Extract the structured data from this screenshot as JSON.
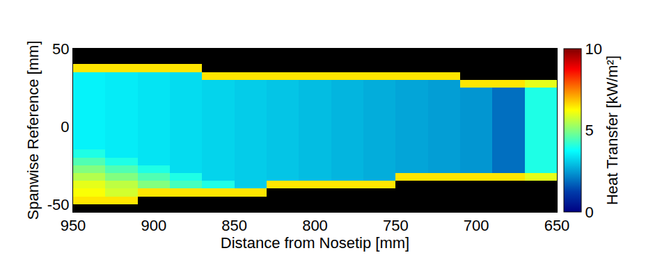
{
  "chart_data": {
    "type": "heatmap",
    "x_label": "Distance from Nosetip [mm]",
    "y_label": "Spanwise Reference [mm]",
    "x": [
      940,
      920,
      900,
      880,
      860,
      840,
      820,
      800,
      780,
      760,
      740,
      720,
      700,
      680,
      660
    ],
    "y": [
      -52.5,
      -47.5,
      -42.5,
      -37.5,
      -32.5,
      -27.5,
      -22.5,
      -17.5,
      -12.5,
      -7.5,
      -2.5,
      2.5,
      7.5,
      12.5,
      17.5,
      22.5,
      27.5,
      32.5,
      37.5,
      42.5,
      47.5
    ],
    "z": [
      [
        null,
        null,
        null,
        null,
        null,
        null,
        null,
        null,
        null,
        null,
        null,
        null,
        null,
        null,
        null
      ],
      [
        6.5,
        6.5,
        null,
        null,
        null,
        null,
        null,
        null,
        null,
        null,
        null,
        null,
        null,
        null,
        null
      ],
      [
        6.2,
        5.8,
        6.5,
        6.5,
        6.5,
        6.5,
        null,
        null,
        null,
        null,
        null,
        null,
        null,
        null,
        null
      ],
      [
        6.0,
        5.6,
        5.0,
        4.4,
        4.0,
        3.1,
        6.5,
        6.5,
        6.5,
        6.5,
        null,
        null,
        null,
        null,
        null
      ],
      [
        5.5,
        5.0,
        4.5,
        4.0,
        3.2,
        3.1,
        3.0,
        2.9,
        2.8,
        2.7,
        6.5,
        6.5,
        6.5,
        6.5,
        6.0
      ],
      [
        5.0,
        4.5,
        4.0,
        3.3,
        3.2,
        3.1,
        3.0,
        2.9,
        2.8,
        2.7,
        2.6,
        2.5,
        2.4,
        1.9,
        4.0
      ],
      [
        4.5,
        4.0,
        3.4,
        3.3,
        3.2,
        3.1,
        3.0,
        2.9,
        2.8,
        2.7,
        2.6,
        2.5,
        2.4,
        1.9,
        4.0
      ],
      [
        4.0,
        3.5,
        3.4,
        3.3,
        3.2,
        3.1,
        3.0,
        2.9,
        2.8,
        2.7,
        2.6,
        2.5,
        2.4,
        1.9,
        4.0
      ],
      [
        3.6,
        3.5,
        3.4,
        3.3,
        3.2,
        3.1,
        3.0,
        2.9,
        2.8,
        2.7,
        2.6,
        2.5,
        2.4,
        1.9,
        4.0
      ],
      [
        3.6,
        3.5,
        3.4,
        3.3,
        3.2,
        3.1,
        3.0,
        2.9,
        2.8,
        2.7,
        2.6,
        2.5,
        2.4,
        1.9,
        4.0
      ],
      [
        3.6,
        3.5,
        3.4,
        3.3,
        3.2,
        3.1,
        3.0,
        2.9,
        2.8,
        2.7,
        2.6,
        2.5,
        2.4,
        1.9,
        4.0
      ],
      [
        3.6,
        3.5,
        3.4,
        3.3,
        3.2,
        3.1,
        3.0,
        2.9,
        2.8,
        2.7,
        2.6,
        2.5,
        2.4,
        1.9,
        4.0
      ],
      [
        3.6,
        3.5,
        3.4,
        3.3,
        3.2,
        3.1,
        3.0,
        2.9,
        2.8,
        2.7,
        2.6,
        2.5,
        2.4,
        1.9,
        4.0
      ],
      [
        3.6,
        3.5,
        3.4,
        3.3,
        3.2,
        3.1,
        3.0,
        2.9,
        2.8,
        2.7,
        2.6,
        2.5,
        2.4,
        1.9,
        4.0
      ],
      [
        3.6,
        3.5,
        3.4,
        3.3,
        3.2,
        3.1,
        3.0,
        2.9,
        2.8,
        2.7,
        2.6,
        2.5,
        2.4,
        1.9,
        4.0
      ],
      [
        3.6,
        3.5,
        3.4,
        3.3,
        3.2,
        3.1,
        3.0,
        2.9,
        2.8,
        2.7,
        2.6,
        2.5,
        2.4,
        1.9,
        4.0
      ],
      [
        3.6,
        3.5,
        3.4,
        3.3,
        3.2,
        3.1,
        3.0,
        2.9,
        2.8,
        2.7,
        2.6,
        2.5,
        6.5,
        6.5,
        6.0
      ],
      [
        3.6,
        3.5,
        3.4,
        3.3,
        6.5,
        6.5,
        6.5,
        6.5,
        6.5,
        6.5,
        6.5,
        6.5,
        null,
        null,
        null
      ],
      [
        6.5,
        6.5,
        6.5,
        6.5,
        null,
        null,
        null,
        null,
        null,
        null,
        null,
        null,
        null,
        null,
        null
      ],
      [
        null,
        null,
        null,
        null,
        null,
        null,
        null,
        null,
        null,
        null,
        null,
        null,
        null,
        null,
        null
      ],
      [
        null,
        null,
        null,
        null,
        null,
        null,
        null,
        null,
        null,
        null,
        null,
        null,
        null,
        null,
        null
      ]
    ],
    "xlim": [
      950,
      650
    ],
    "ylim": [
      -55,
      50
    ],
    "xticks": [
      950,
      900,
      850,
      800,
      750,
      700,
      650
    ],
    "yticks": [
      -50,
      0,
      50
    ],
    "color": "Jet",
    "colorbar_label": "Heat Transfer [kW/m²]",
    "colorbar_range": [
      0,
      10
    ],
    "colorbar_ticks": [
      0,
      5,
      10
    ]
  }
}
